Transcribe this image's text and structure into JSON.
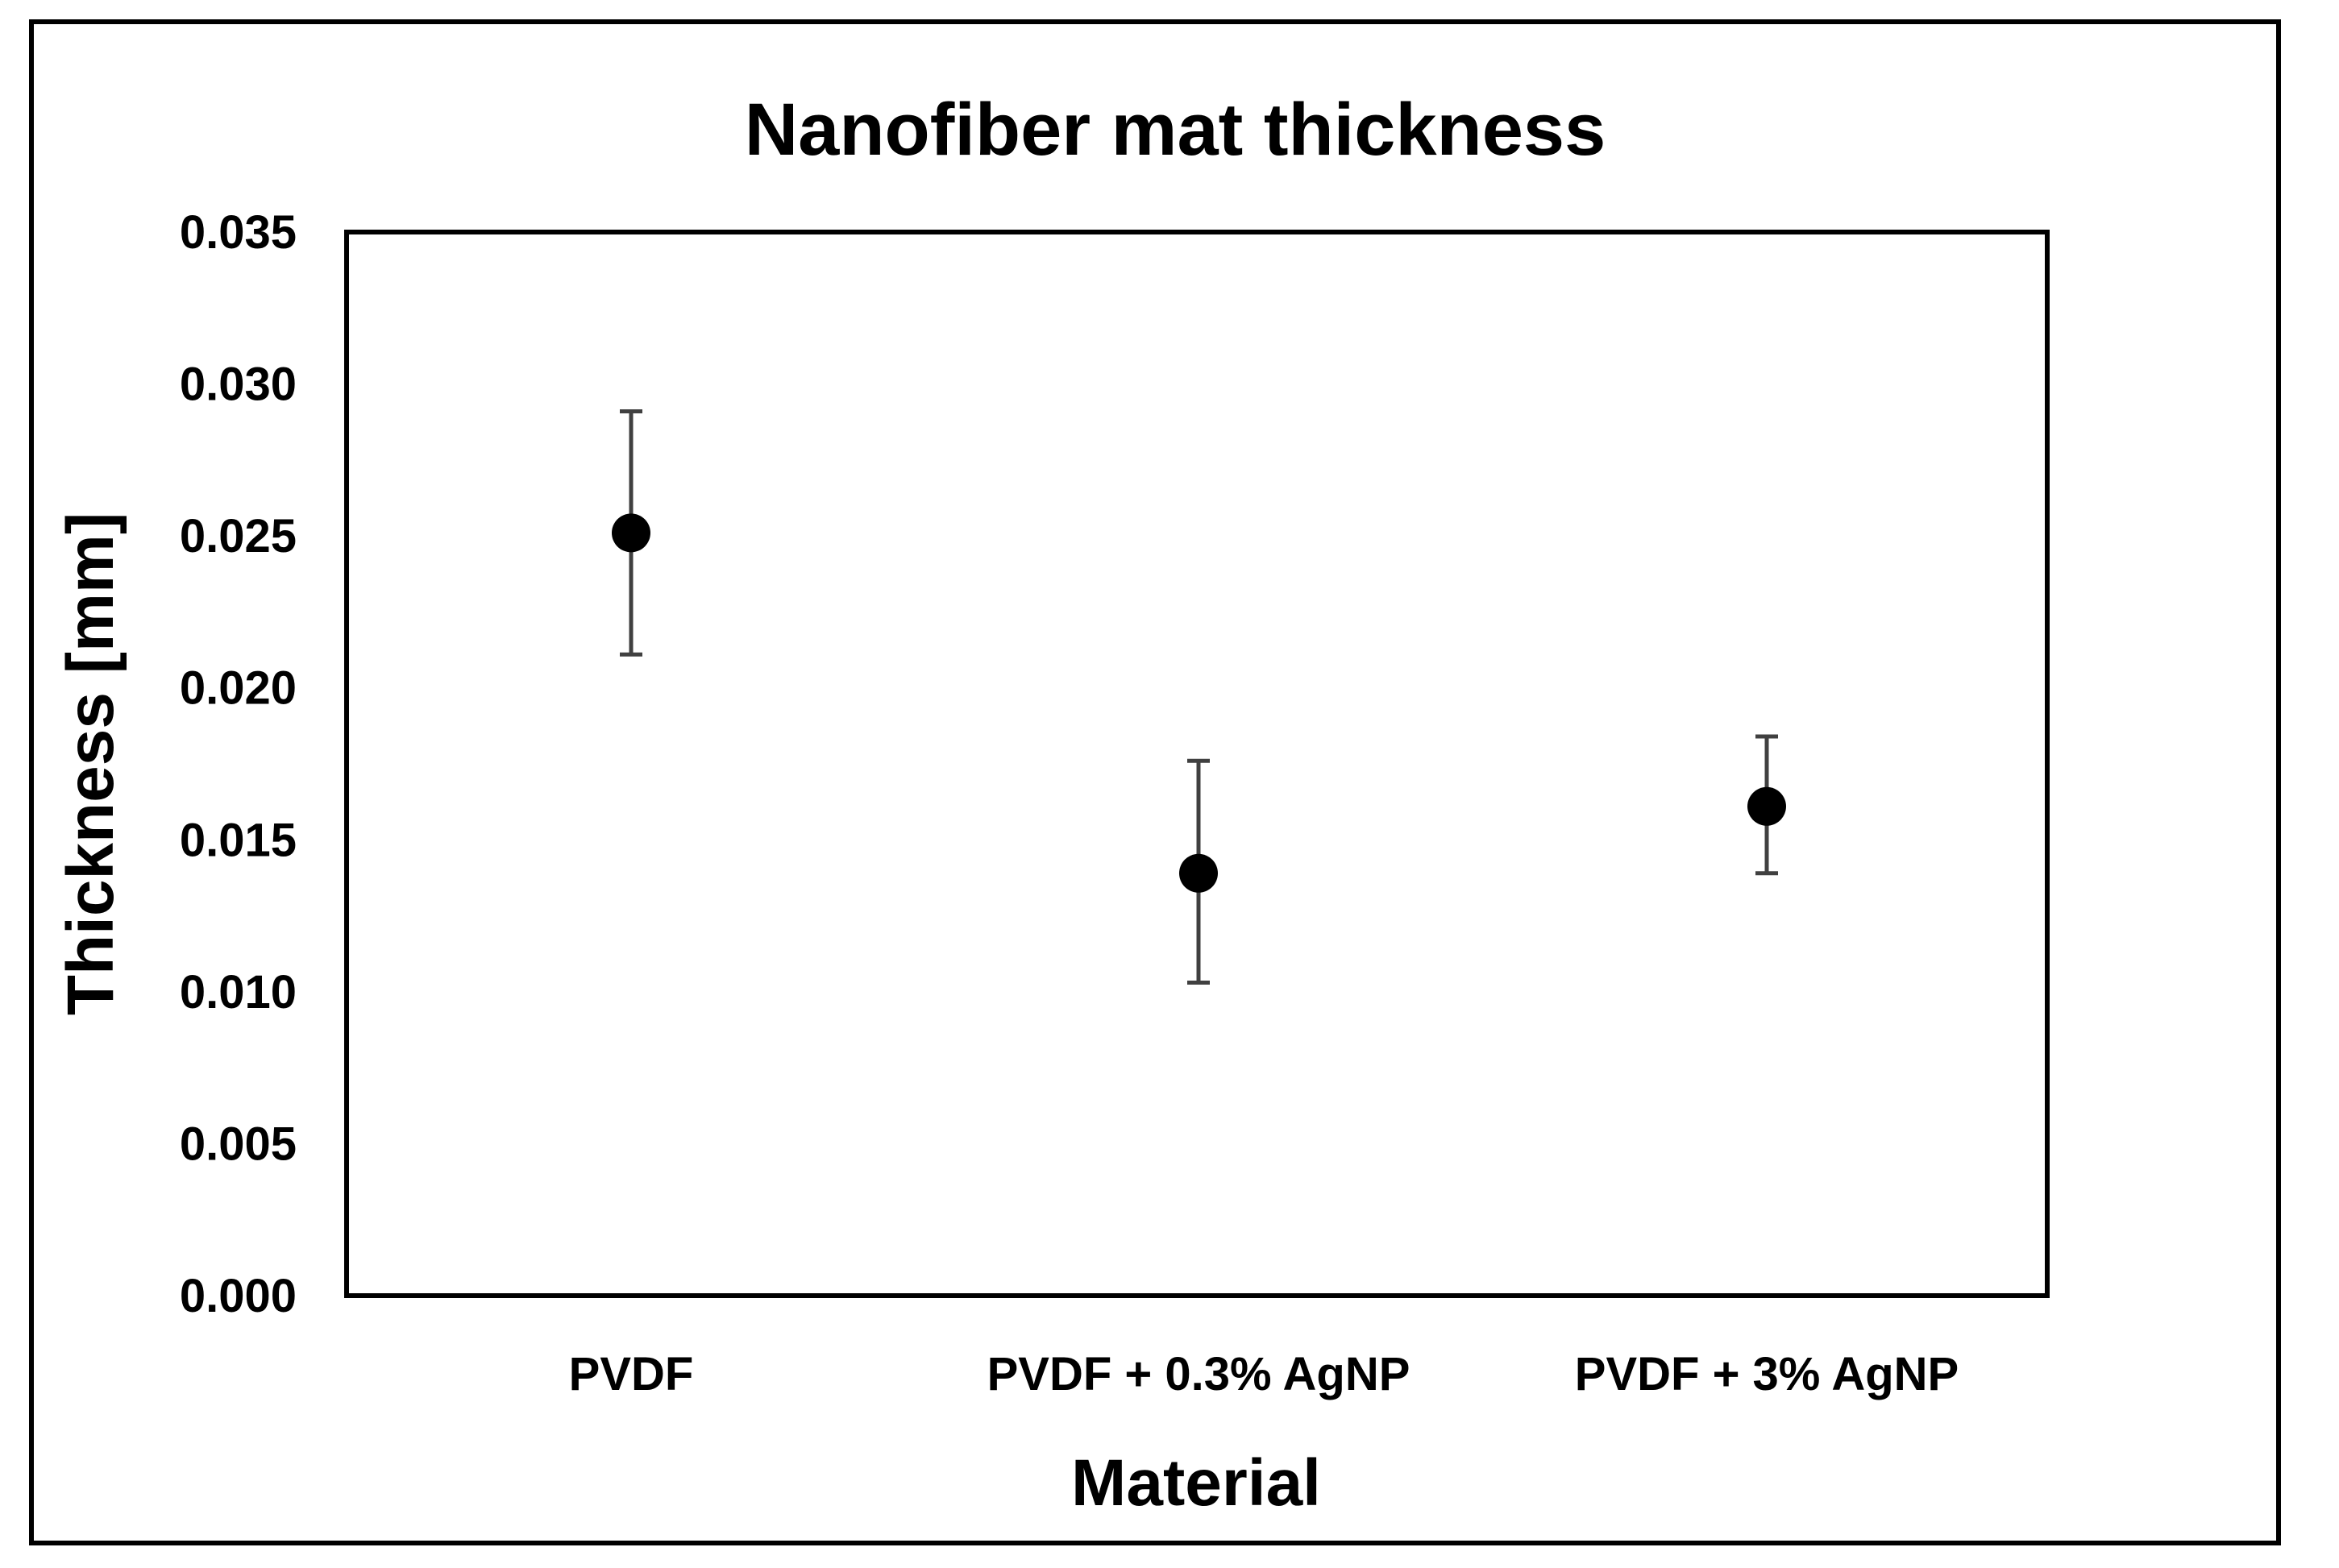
{
  "chart_data": {
    "type": "scatter",
    "title": "Nanofiber mat thickness",
    "xlabel": "Material",
    "ylabel": "Thickness [mm]",
    "categories": [
      "PVDF",
      "PVDF + 0.3% AgNP",
      "PVDF + 3% AgNP"
    ],
    "values": [
      0.0251,
      0.0139,
      0.0161
    ],
    "error_upper": [
      0.0291,
      0.0176,
      0.0184
    ],
    "error_lower": [
      0.0211,
      0.0103,
      0.0139
    ],
    "ylim": [
      0,
      0.035
    ],
    "yticks": [
      "0.000",
      "0.005",
      "0.010",
      "0.015",
      "0.020",
      "0.025",
      "0.030",
      "0.035"
    ],
    "ytick_values": [
      0,
      0.005,
      0.01,
      0.015,
      0.02,
      0.025,
      0.03,
      0.035
    ],
    "grid": false,
    "colors": {
      "marker": "#000000",
      "errorbar": "#404040",
      "axis": "#000000"
    }
  }
}
